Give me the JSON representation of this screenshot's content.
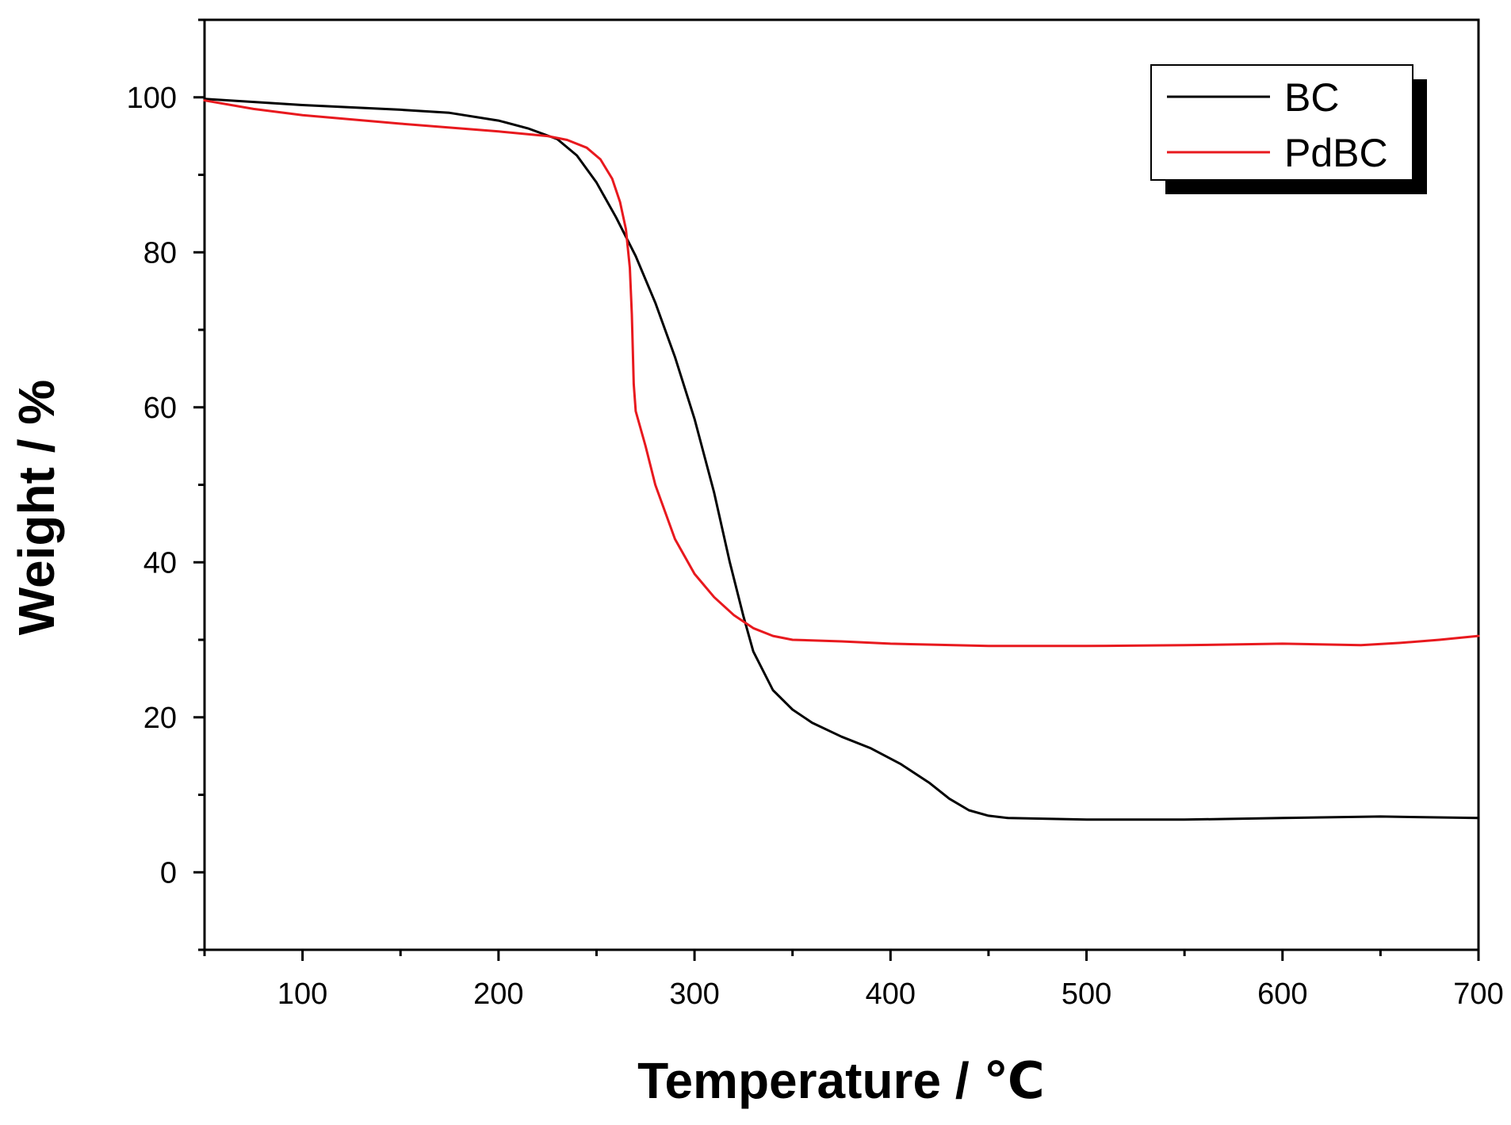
{
  "chart_data": {
    "type": "line",
    "xlabel": "Temperature / ℃",
    "ylabel": "Weight / %",
    "xlim": [
      50,
      700
    ],
    "ylim": [
      -10,
      110
    ],
    "xticks": [
      100,
      200,
      300,
      400,
      500,
      600,
      700
    ],
    "yticks": [
      0,
      20,
      40,
      60,
      80,
      100
    ],
    "xtick_labels": [
      "100",
      "200",
      "300",
      "400",
      "500",
      "600",
      "700"
    ],
    "ytick_labels": [
      "0",
      "20",
      "40",
      "60",
      "80",
      "100"
    ],
    "grid": false,
    "legend_position": "top-right",
    "series": [
      {
        "name": "BC",
        "color": "#000000",
        "points": [
          [
            50,
            99.8
          ],
          [
            100,
            99.0
          ],
          [
            150,
            98.4
          ],
          [
            175,
            98.0
          ],
          [
            200,
            97.0
          ],
          [
            215,
            96.0
          ],
          [
            230,
            94.6
          ],
          [
            240,
            92.5
          ],
          [
            250,
            89.0
          ],
          [
            260,
            84.5
          ],
          [
            270,
            79.5
          ],
          [
            280,
            73.5
          ],
          [
            290,
            66.5
          ],
          [
            300,
            58.5
          ],
          [
            310,
            49.0
          ],
          [
            318,
            40.0
          ],
          [
            325,
            33.0
          ],
          [
            330,
            28.5
          ],
          [
            340,
            23.5
          ],
          [
            350,
            21.0
          ],
          [
            360,
            19.3
          ],
          [
            375,
            17.5
          ],
          [
            390,
            16.0
          ],
          [
            405,
            14.0
          ],
          [
            420,
            11.5
          ],
          [
            430,
            9.5
          ],
          [
            440,
            8.0
          ],
          [
            450,
            7.3
          ],
          [
            460,
            7.0
          ],
          [
            500,
            6.8
          ],
          [
            550,
            6.8
          ],
          [
            600,
            7.0
          ],
          [
            650,
            7.2
          ],
          [
            700,
            7.0
          ]
        ]
      },
      {
        "name": "PdBC",
        "color": "#e8191e",
        "points": [
          [
            50,
            99.6
          ],
          [
            75,
            98.5
          ],
          [
            100,
            97.7
          ],
          [
            150,
            96.6
          ],
          [
            200,
            95.6
          ],
          [
            225,
            95.0
          ],
          [
            235,
            94.5
          ],
          [
            245,
            93.5
          ],
          [
            252,
            92.0
          ],
          [
            258,
            89.5
          ],
          [
            262,
            86.5
          ],
          [
            265,
            83.0
          ],
          [
            267,
            78.0
          ],
          [
            268,
            72.0
          ],
          [
            269,
            63.0
          ],
          [
            270,
            59.5
          ],
          [
            275,
            55.0
          ],
          [
            280,
            50.0
          ],
          [
            290,
            43.0
          ],
          [
            300,
            38.5
          ],
          [
            310,
            35.5
          ],
          [
            320,
            33.2
          ],
          [
            330,
            31.5
          ],
          [
            340,
            30.5
          ],
          [
            350,
            30.0
          ],
          [
            375,
            29.8
          ],
          [
            400,
            29.5
          ],
          [
            450,
            29.2
          ],
          [
            500,
            29.2
          ],
          [
            550,
            29.3
          ],
          [
            600,
            29.5
          ],
          [
            640,
            29.3
          ],
          [
            660,
            29.6
          ],
          [
            680,
            30.0
          ],
          [
            700,
            30.5
          ]
        ]
      }
    ]
  }
}
